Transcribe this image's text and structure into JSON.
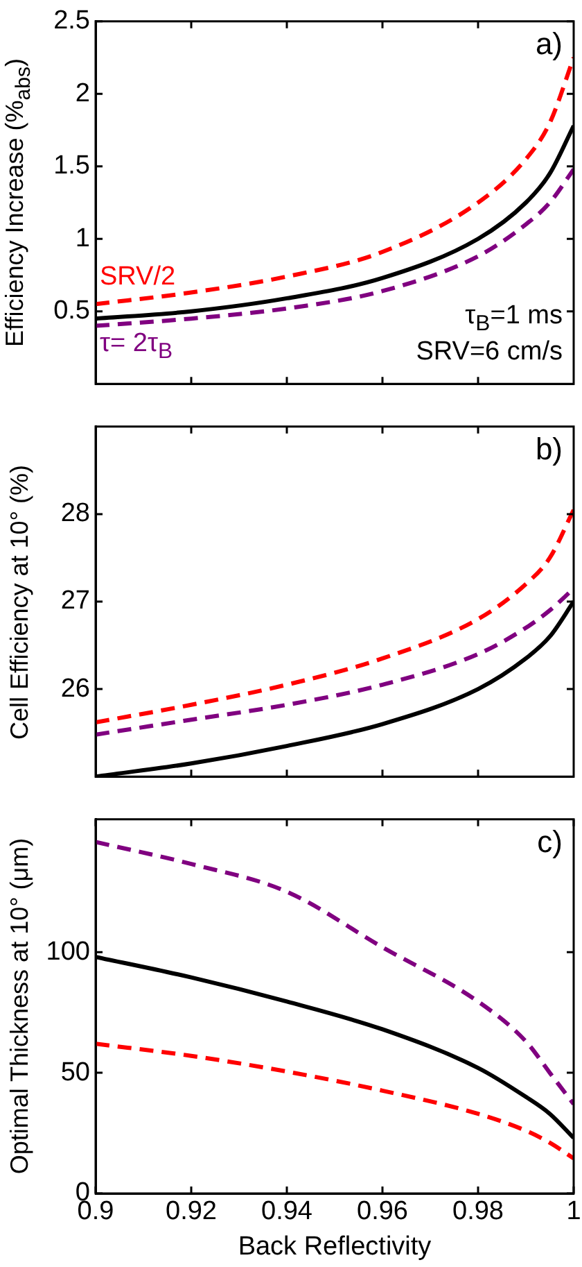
{
  "chart_data": [
    {
      "type": "line",
      "ylabel": "Efficiency Increase (%$_{abs}$)",
      "xlim": [
        0.9,
        1
      ],
      "xticks": [
        0.92,
        0.94,
        0.96,
        0.98
      ],
      "ylim": [
        0,
        2.5
      ],
      "yticks": [
        0.5,
        1,
        1.5,
        2,
        2.5
      ],
      "grid": false,
      "legend": false,
      "tick_labels": "y",
      "x": [
        0.9,
        0.92,
        0.94,
        0.96,
        0.98,
        0.99,
        0.995,
        1
      ],
      "annotations": [
        "a)",
        "τ$_{B}$=1 ms",
        "SRV=6 cm/s"
      ],
      "series": [
        {
          "color": "#000000",
          "line_style": "solid",
          "values": [
            0.45,
            0.5,
            0.59,
            0.73,
            1.0,
            1.25,
            1.45,
            1.78
          ]
        },
        {
          "name": "SRV/2",
          "color": "#ff0000",
          "line_style": "dashed",
          "values": [
            0.55,
            0.63,
            0.74,
            0.91,
            1.25,
            1.55,
            1.8,
            2.25
          ]
        },
        {
          "name": "τ= 2τ$_{B}$",
          "color": "#800080",
          "line_style": "dashed",
          "values": [
            0.4,
            0.45,
            0.52,
            0.64,
            0.88,
            1.1,
            1.25,
            1.48
          ]
        }
      ]
    },
    {
      "type": "line",
      "ylabel": "Cell Efficiency at 10° (%)",
      "xlim": [
        0.9,
        1
      ],
      "xticks": [
        0.92,
        0.94,
        0.96,
        0.98
      ],
      "ylim": [
        25,
        29
      ],
      "yticks": [
        26,
        27,
        28
      ],
      "grid": false,
      "legend": false,
      "tick_labels": "y",
      "x": [
        0.9,
        0.92,
        0.94,
        0.96,
        0.98,
        0.99,
        0.995,
        1
      ],
      "annotations": [
        "b)"
      ],
      "series": [
        {
          "color": "#000000",
          "line_style": "solid",
          "values": [
            25.0,
            25.15,
            25.35,
            25.6,
            26.0,
            26.35,
            26.6,
            27.0
          ]
        },
        {
          "color": "#ff0000",
          "line_style": "dashed",
          "values": [
            25.62,
            25.82,
            26.05,
            26.35,
            26.8,
            27.2,
            27.5,
            28.05
          ]
        },
        {
          "color": "#800080",
          "line_style": "dashed",
          "values": [
            25.48,
            25.65,
            25.82,
            26.05,
            26.4,
            26.7,
            26.9,
            27.15
          ]
        }
      ]
    },
    {
      "type": "line",
      "ylabel": "Optimal Thickness at 10° (μm)",
      "xlabel": "Back Reflectivity",
      "xlim": [
        0.9,
        1
      ],
      "xticks": [
        0.9,
        0.92,
        0.94,
        0.96,
        0.98,
        {
          "value": 1,
          "label": "1"
        }
      ],
      "ylim": [
        0,
        155
      ],
      "yticks": [
        0,
        50,
        100
      ],
      "grid": false,
      "legend": false,
      "x": [
        0.9,
        0.92,
        0.94,
        0.96,
        0.98,
        0.99,
        0.995,
        1
      ],
      "annotations": [
        "c)"
      ],
      "series": [
        {
          "color": "#000000",
          "line_style": "solid",
          "values": [
            98,
            89.5,
            79.5,
            68,
            52,
            40,
            33,
            23
          ]
        },
        {
          "color": "#ff0000",
          "line_style": "dashed",
          "values": [
            62,
            57,
            50.5,
            42.6,
            33,
            26,
            21,
            14.5
          ]
        },
        {
          "color": "#800080",
          "line_style": "dashed",
          "values": [
            145.6,
            136.5,
            125,
            102,
            79.5,
            63,
            50,
            37
          ]
        }
      ]
    }
  ]
}
